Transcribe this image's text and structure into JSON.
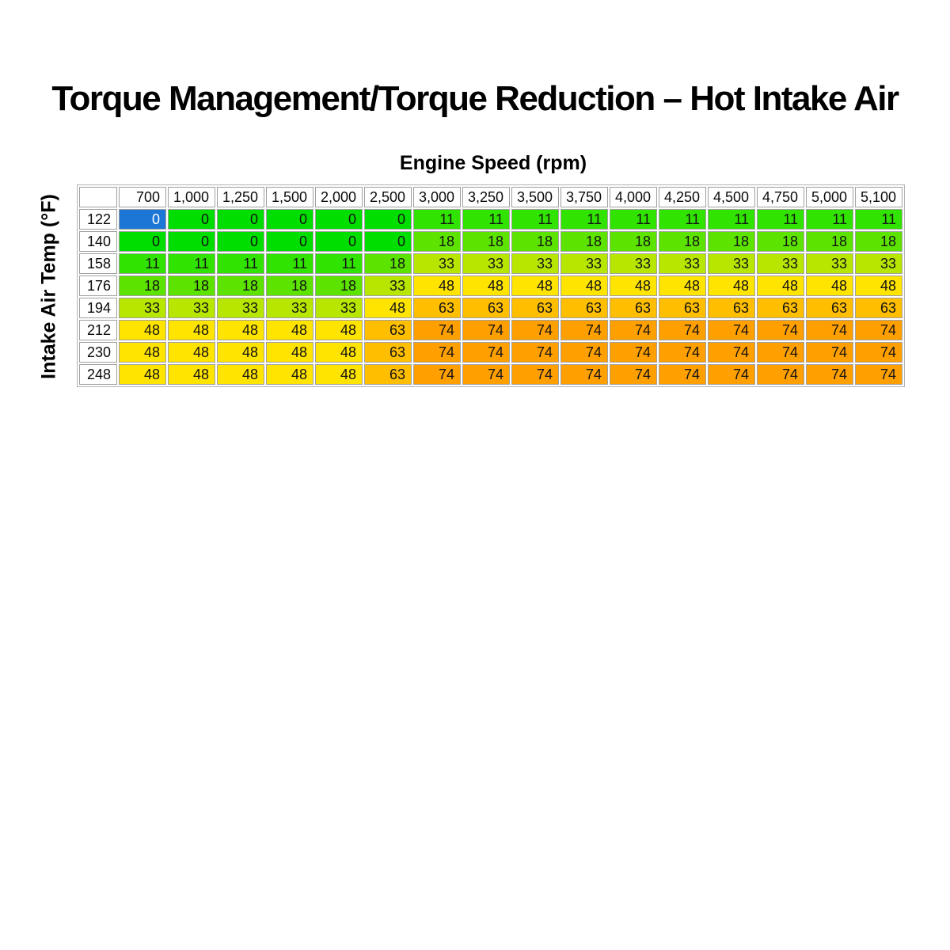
{
  "title": "Torque Management/Torque Reduction – Hot Intake Air",
  "x_axis_label": "Engine Speed (rpm)",
  "y_axis_label": "Intake Air Temp (°F)",
  "chart_data": {
    "type": "heatmap",
    "xlabel": "Engine Speed (rpm)",
    "ylabel": "Intake Air Temp (°F)",
    "columns": [
      "700",
      "1,000",
      "1,250",
      "1,500",
      "2,000",
      "2,500",
      "3,000",
      "3,250",
      "3,500",
      "3,750",
      "4,000",
      "4,250",
      "4,500",
      "4,750",
      "5,000",
      "5,100"
    ],
    "rows": [
      "122",
      "140",
      "158",
      "176",
      "194",
      "212",
      "230",
      "248"
    ],
    "values": [
      [
        0,
        0,
        0,
        0,
        0,
        0,
        11,
        11,
        11,
        11,
        11,
        11,
        11,
        11,
        11,
        11
      ],
      [
        0,
        0,
        0,
        0,
        0,
        0,
        18,
        18,
        18,
        18,
        18,
        18,
        18,
        18,
        18,
        18
      ],
      [
        11,
        11,
        11,
        11,
        11,
        18,
        33,
        33,
        33,
        33,
        33,
        33,
        33,
        33,
        33,
        33
      ],
      [
        18,
        18,
        18,
        18,
        18,
        33,
        48,
        48,
        48,
        48,
        48,
        48,
        48,
        48,
        48,
        48
      ],
      [
        33,
        33,
        33,
        33,
        33,
        48,
        63,
        63,
        63,
        63,
        63,
        63,
        63,
        63,
        63,
        63
      ],
      [
        48,
        48,
        48,
        48,
        48,
        63,
        74,
        74,
        74,
        74,
        74,
        74,
        74,
        74,
        74,
        74
      ],
      [
        48,
        48,
        48,
        48,
        48,
        63,
        74,
        74,
        74,
        74,
        74,
        74,
        74,
        74,
        74,
        74
      ],
      [
        48,
        48,
        48,
        48,
        48,
        63,
        74,
        74,
        74,
        74,
        74,
        74,
        74,
        74,
        74,
        74
      ]
    ],
    "selected_cell": {
      "row_index": 0,
      "col_index": 0,
      "value": 0
    },
    "value_colors": {
      "0": "#00DE00",
      "11": "#30E300",
      "18": "#5CE300",
      "33": "#B7E600",
      "48": "#FFE400",
      "63": "#FFBE00",
      "74": "#FF9F00"
    },
    "selected_bg": "#1B76D5",
    "selected_text_color": "#FFFFFF",
    "cell_text_color": "#141414",
    "header_bg": "#FFFFFF"
  }
}
